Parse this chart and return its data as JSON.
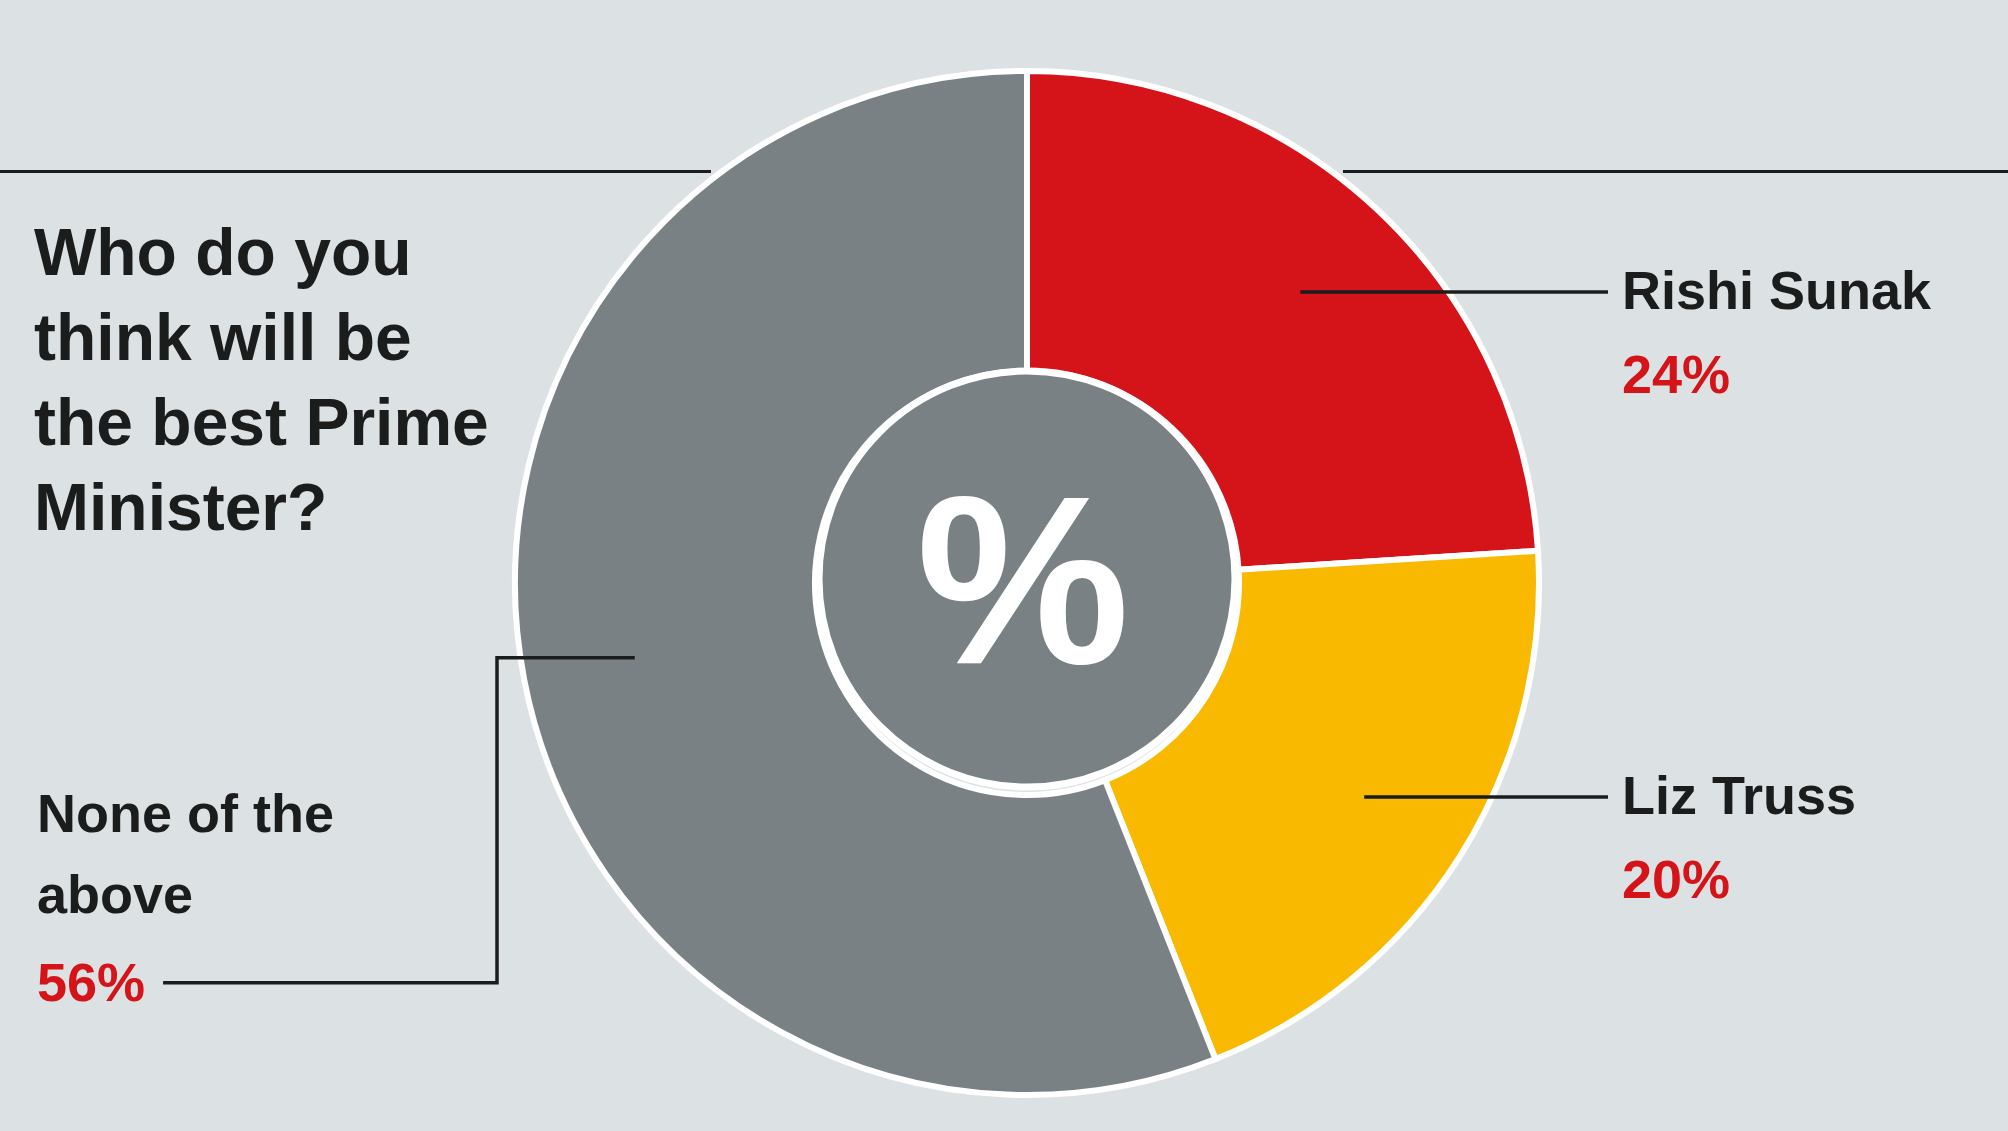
{
  "chart_data": {
    "type": "donut",
    "title": "Who do you think will be the best Prime Minister?",
    "categories": [
      "Rishi Sunak",
      "Liz Truss",
      "None of the above"
    ],
    "values": [
      24,
      20,
      56
    ],
    "colors": [
      "#d41418",
      "#f9b900",
      "#7a8185"
    ],
    "value_labels": [
      "24%",
      "20%",
      "56%"
    ],
    "annotations": [
      "%"
    ]
  }
}
